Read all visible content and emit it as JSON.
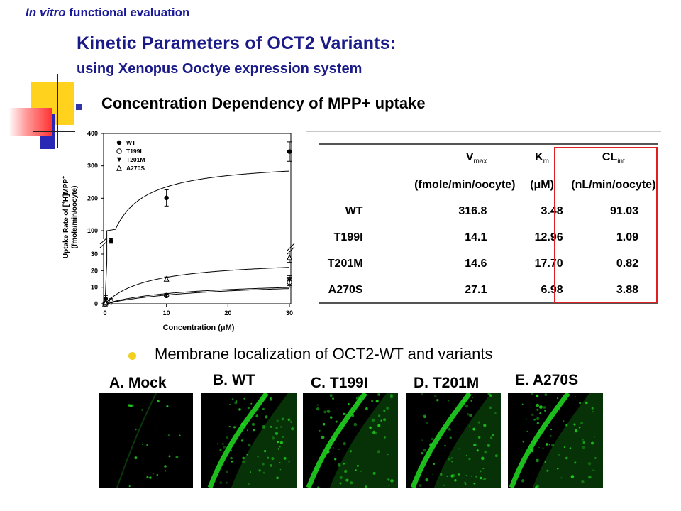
{
  "header": {
    "label_italic": "In vitro",
    "label_rest": " functional evaluation"
  },
  "title": "Kinetic Parameters of OCT2 Variants:",
  "subtitle": "using Xenopus Ooctye expression system",
  "section1": "Concentration Dependency of MPP+ uptake",
  "section2": "Membrane localization of OCT2-WT and variants",
  "colors": {
    "title": "#1a1a88",
    "highlight_box": "#e02020",
    "bullet_square": "#3333aa",
    "bullet_dot": "#f0d020",
    "stain": "#22dd22"
  },
  "chart_data": {
    "type": "line",
    "xlabel": "Concentration (μM)",
    "ylabel": "Uptake Rate of [3H]MPP+ (fmole/min/oocyte)",
    "ylabel_line1": "Uptake Rate of [",
    "ylabel_sup1": "3",
    "ylabel_mid": "H]MPP",
    "ylabel_sup2": "+",
    "ylabel_line2": "(fmole/min/oocyte)",
    "xlim": [
      0,
      30
    ],
    "x_ticks": [
      0,
      10,
      20,
      30
    ],
    "y_axis_broken": true,
    "y_ticks_lower": [
      0,
      10,
      20,
      30
    ],
    "y_ticks_upper": [
      100,
      200,
      300,
      400
    ],
    "legend_position": "top-left",
    "series": [
      {
        "name": "WT",
        "marker": "filled-circle",
        "x": [
          0,
          0.1,
          1,
          10,
          30
        ],
        "y": [
          0,
          3,
          68,
          201,
          344
        ],
        "err": [
          0,
          2,
          7,
          25,
          30
        ],
        "fit": {
          "vmax": 316.8,
          "km": 3.48
        }
      },
      {
        "name": "T199I",
        "marker": "open-circle",
        "x": [
          0,
          0.1,
          1,
          10,
          30
        ],
        "y": [
          0,
          0.3,
          1.0,
          5,
          13
        ],
        "err": [
          0,
          0.2,
          0.3,
          0.6,
          3
        ],
        "fit": {
          "vmax": 14.1,
          "km": 12.96
        }
      },
      {
        "name": "T201M",
        "marker": "filled-triangle-down",
        "x": [
          0,
          0.1,
          1,
          10,
          30
        ],
        "y": [
          0,
          0.2,
          0.8,
          5,
          14
        ],
        "err": [
          0,
          0.2,
          0.3,
          0.6,
          3
        ],
        "fit": {
          "vmax": 14.6,
          "km": 17.7
        }
      },
      {
        "name": "A270S",
        "marker": "open-triangle-up",
        "x": [
          0,
          0.1,
          1,
          10,
          30
        ],
        "y": [
          0,
          0.6,
          2.5,
          15,
          28
        ],
        "err": [
          0,
          0.4,
          0.6,
          1.2,
          3
        ],
        "fit": {
          "vmax": 27.1,
          "km": 6.98
        }
      }
    ]
  },
  "kinetics_table": {
    "header_row1": [
      "",
      "V",
      "K",
      "CL"
    ],
    "header_subs": [
      "",
      "max",
      "m",
      "int"
    ],
    "header_row2": [
      "",
      "(fmole/min/oocyte)",
      "(μM)",
      "(nL/min/oocyte)"
    ],
    "rows": [
      {
        "variant": "WT",
        "vmax": "316.8",
        "km": "3.48",
        "clint": "91.03"
      },
      {
        "variant": "T199I",
        "vmax": "14.1",
        "km": "12.96",
        "clint": "1.09"
      },
      {
        "variant": "T201M",
        "vmax": "14.6",
        "km": "17.70",
        "clint": "0.82"
      },
      {
        "variant": "A270S",
        "vmax": "27.1",
        "km": "6.98",
        "clint": "3.88"
      }
    ]
  },
  "panels": [
    {
      "label": "A. Mock",
      "stain": "none"
    },
    {
      "label": "B. WT",
      "stain": "strong"
    },
    {
      "label": "C. T199I",
      "stain": "strong"
    },
    {
      "label": "D. T201M",
      "stain": "strong"
    },
    {
      "label": "E. A270S",
      "stain": "strong"
    }
  ]
}
